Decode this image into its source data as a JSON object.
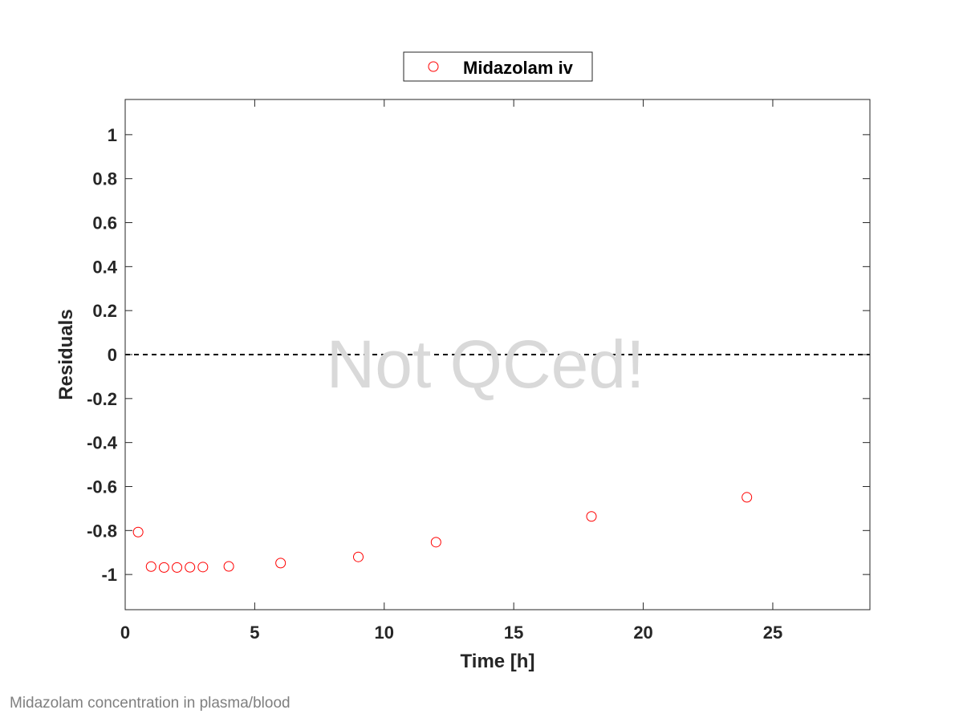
{
  "chart_data": {
    "type": "scatter",
    "xlabel": "Time [h]",
    "ylabel": "Residuals",
    "xlim": [
      0,
      28.75
    ],
    "ylim": [
      -1.16,
      1.16
    ],
    "xticks": [
      0,
      5,
      10,
      15,
      20,
      25
    ],
    "xtick_labels": [
      "0",
      "5",
      "10",
      "15",
      "20",
      "25"
    ],
    "yticks": [
      -1,
      -0.8,
      -0.6,
      -0.4,
      -0.2,
      0,
      0.2,
      0.4,
      0.6,
      0.8,
      1
    ],
    "ytick_labels": [
      "-1",
      "-0.8",
      "-0.6",
      "-0.4",
      "-0.2",
      "0",
      "0.2",
      "0.4",
      "0.6",
      "0.8",
      "1"
    ],
    "grid": false,
    "legend_position": "top-center outside",
    "reference_line": {
      "y": 0,
      "style": "dashed",
      "color": "#000000"
    },
    "watermark": "Not QCed!",
    "series": [
      {
        "name": "Midazolam iv",
        "marker": "open-circle",
        "color": "#ff0000",
        "x": [
          0.5,
          1,
          1.5,
          2,
          2.5,
          3,
          4,
          6,
          9,
          12,
          18,
          24
        ],
        "y": [
          -0.807,
          -0.964,
          -0.968,
          -0.968,
          -0.967,
          -0.966,
          -0.963,
          -0.948,
          -0.92,
          -0.853,
          -0.736,
          -0.649
        ]
      }
    ]
  },
  "caption": "Midazolam concentration in plasma/blood"
}
